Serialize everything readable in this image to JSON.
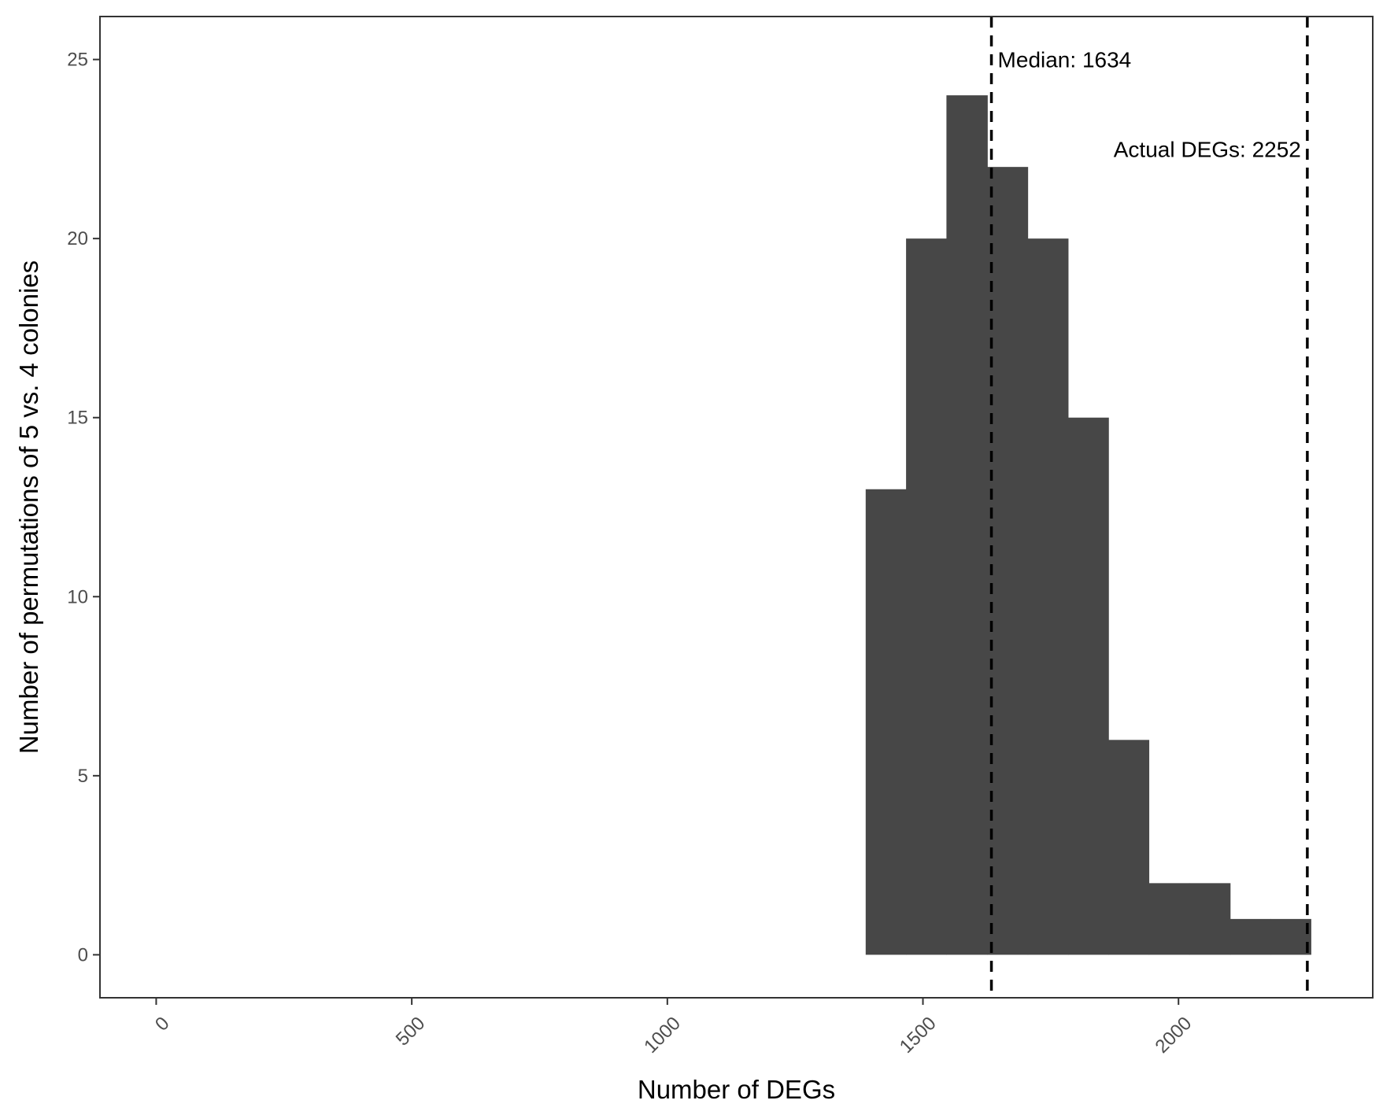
{
  "chart_data": {
    "type": "bar",
    "xlabel": "Number of DEGs",
    "ylabel": "Number of permutations of 5 vs. 4 colonies",
    "xlim": [
      -110,
      2380
    ],
    "ylim": [
      -1.2,
      26.2
    ],
    "x_ticks": [
      0,
      500,
      1000,
      1500,
      2000
    ],
    "y_ticks": [
      0,
      5,
      10,
      15,
      20,
      25
    ],
    "bin_edges": [
      1388,
      1467,
      1546,
      1626,
      1705,
      1784,
      1863,
      1942,
      2021,
      2101,
      2180,
      2259
    ],
    "values": [
      13,
      20,
      24,
      22,
      20,
      15,
      6,
      2,
      2,
      1,
      1
    ],
    "bar_color": "#474747",
    "grid": false,
    "vlines": [
      {
        "x": 1634,
        "label": "Median: 1634",
        "label_y": 25,
        "anchor": "start"
      },
      {
        "x": 2252,
        "label": "Actual DEGs: 2252",
        "label_y": 22.5,
        "anchor": "end"
      }
    ]
  }
}
